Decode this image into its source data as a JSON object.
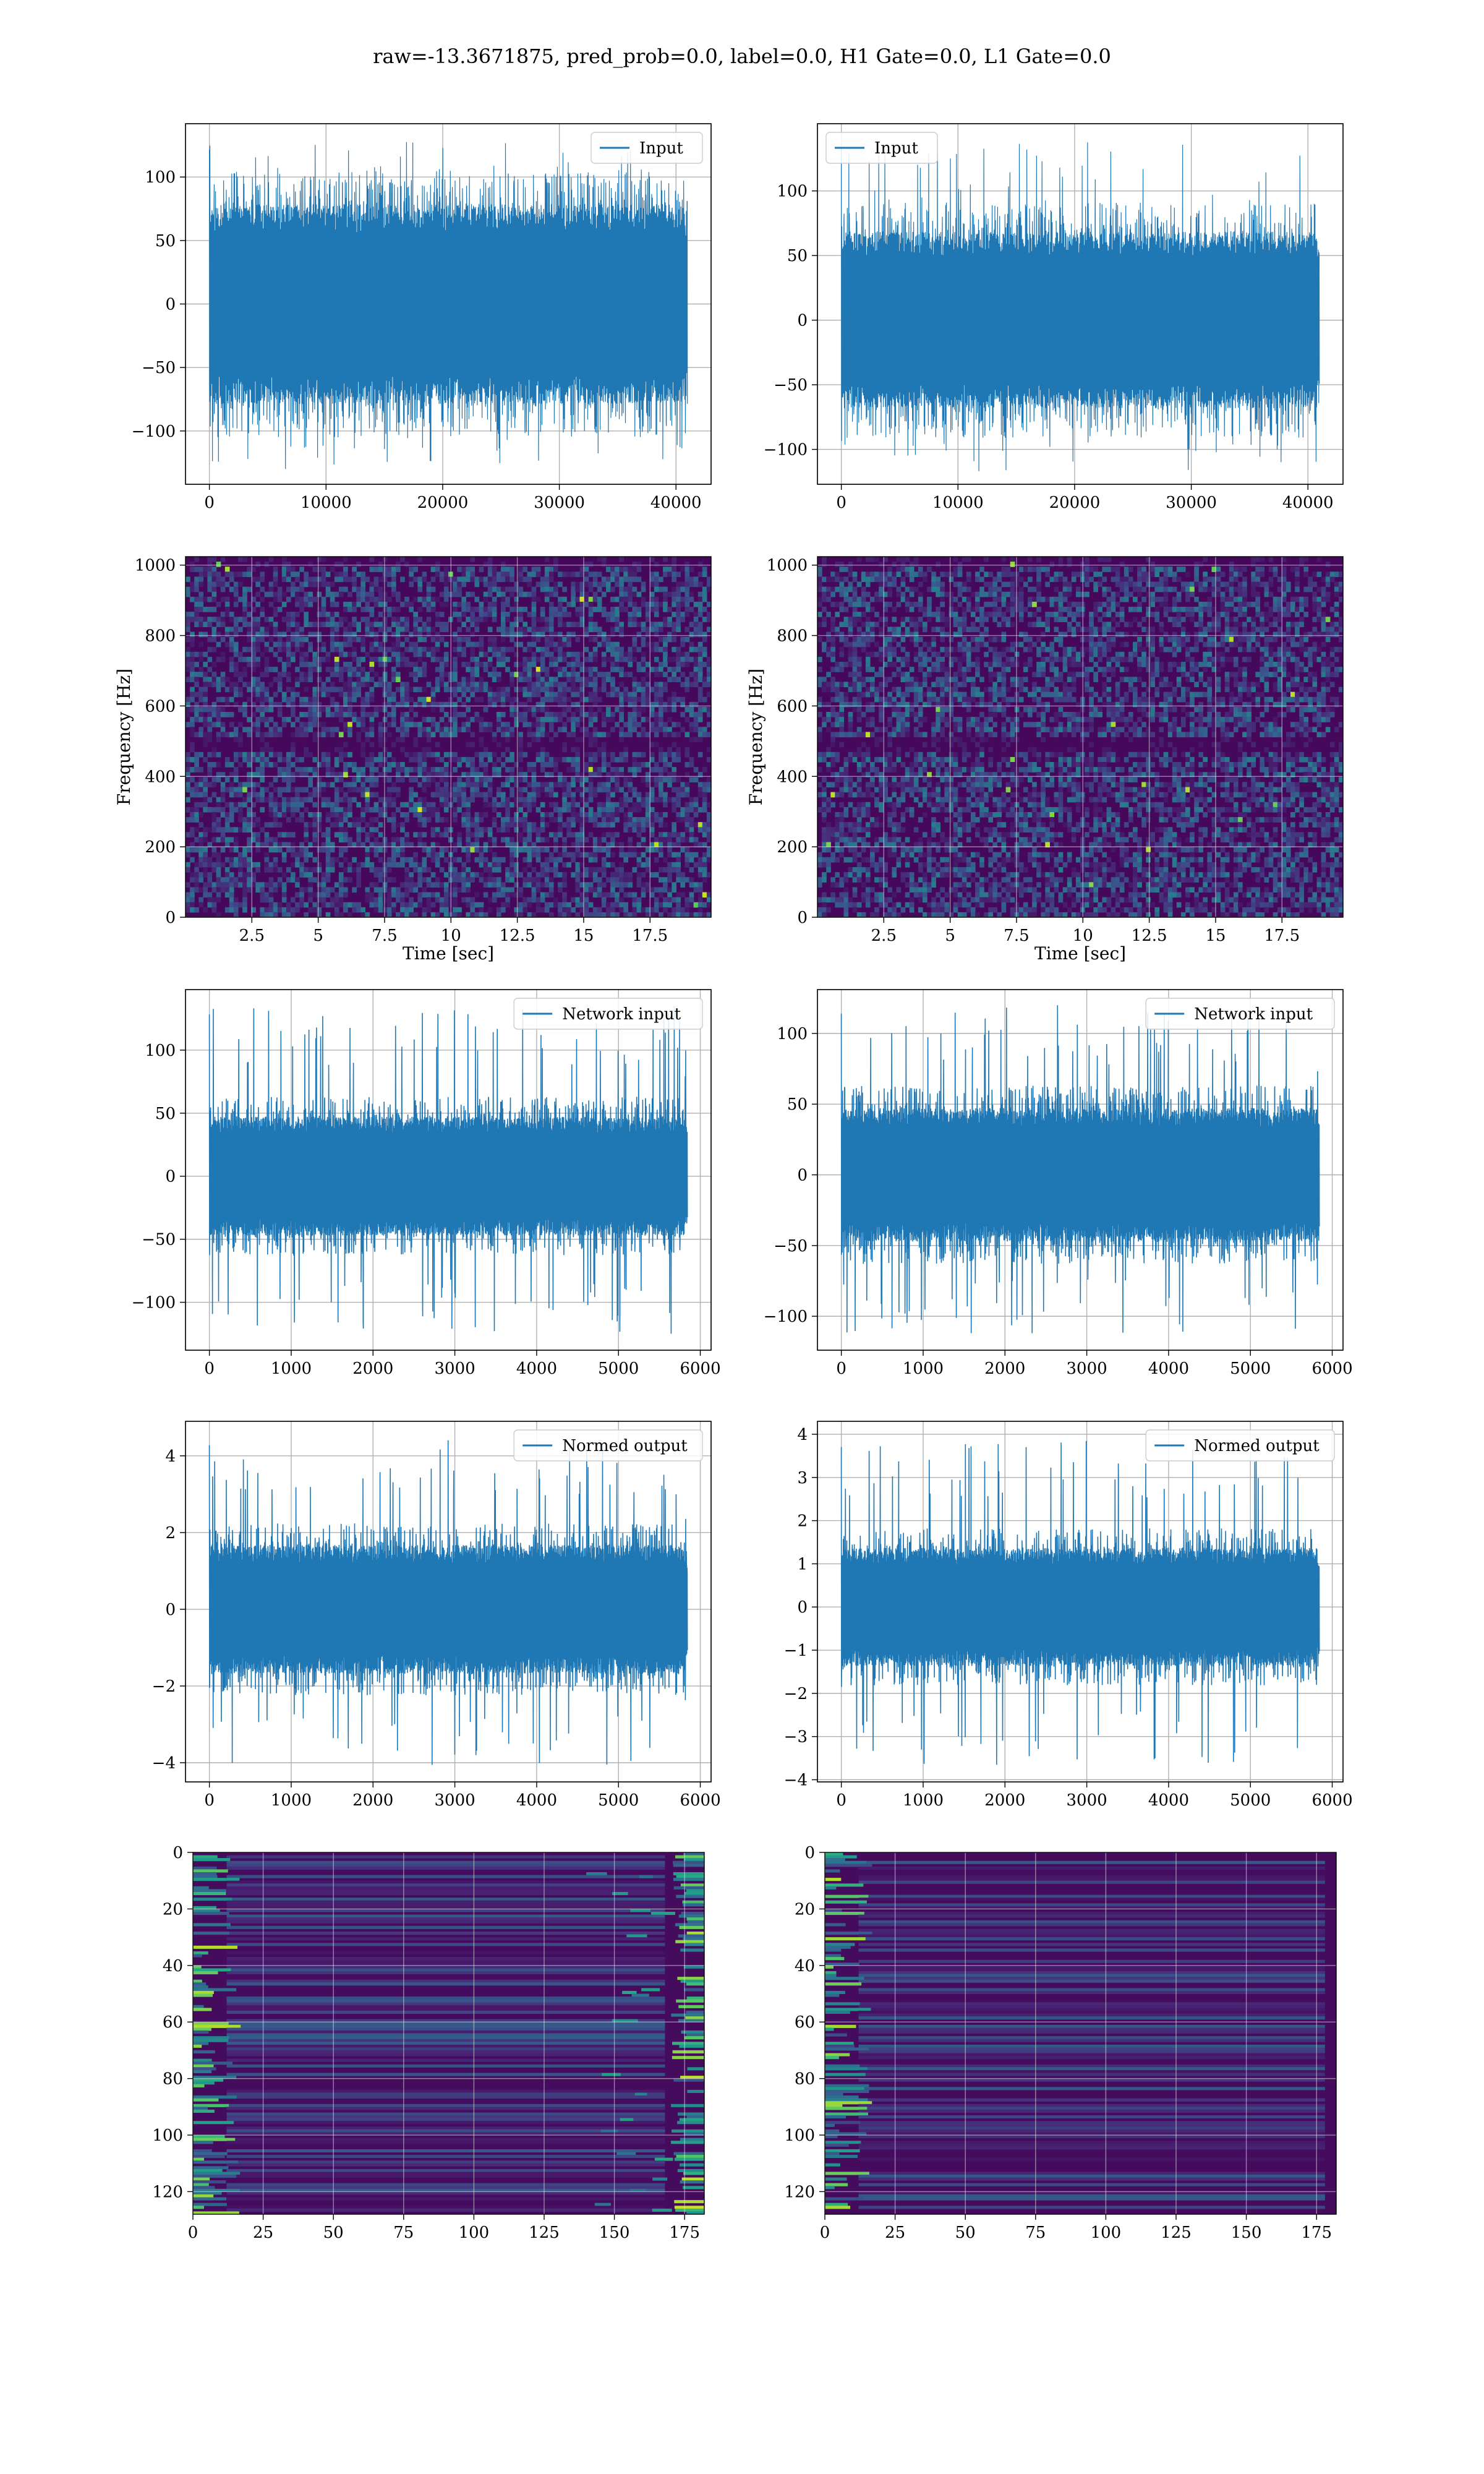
{
  "figure": {
    "title": "raw=-13.3671875, pred_prob=0.0, label=0.0, H1 Gate=0.0, L1 Gate=0.0"
  },
  "chart_data": [
    {
      "id": "h1-input",
      "type": "line",
      "legend": {
        "label": "Input",
        "loc": "upper right"
      },
      "series": [
        {
          "name": "Input",
          "color": "#1f77b4",
          "n_samples": 40960,
          "amplitude_band": [
            -75,
            75
          ],
          "peak_range": [
            -130,
            128
          ]
        }
      ],
      "xlim": [
        -2048,
        43008
      ],
      "ylim": [
        -142,
        142
      ],
      "xticks": [
        0,
        10000,
        20000,
        30000,
        40000
      ],
      "yticks": [
        -100,
        -50,
        0,
        50,
        100
      ],
      "xlabel": "",
      "ylabel": "",
      "grid": true
    },
    {
      "id": "l1-input",
      "type": "line",
      "legend": {
        "label": "Input",
        "loc": "upper left"
      },
      "series": [
        {
          "name": "Input",
          "color": "#1f77b4",
          "n_samples": 40960,
          "amplitude_band": [
            -65,
            65
          ],
          "peak_range": [
            -117,
            140
          ]
        }
      ],
      "xlim": [
        -2048,
        43008
      ],
      "ylim": [
        -127,
        152
      ],
      "xticks": [
        0,
        10000,
        20000,
        30000,
        40000
      ],
      "yticks": [
        -100,
        -50,
        0,
        50,
        100
      ],
      "xlabel": "",
      "ylabel": "",
      "grid": true
    },
    {
      "id": "h1-spectrogram",
      "type": "heatmap",
      "colormap": "viridis",
      "xlim": [
        0,
        19.8
      ],
      "ylim": [
        0,
        1024
      ],
      "xticks": [
        2.5,
        5.0,
        7.5,
        10.0,
        12.5,
        15.0,
        17.5
      ],
      "yticks": [
        0,
        200,
        400,
        600,
        800,
        1000
      ],
      "xlabel": "Time [sec]",
      "ylabel": "Frequency [Hz]",
      "grid": true
    },
    {
      "id": "l1-spectrogram",
      "type": "heatmap",
      "colormap": "viridis",
      "xlim": [
        0,
        19.8
      ],
      "ylim": [
        0,
        1024
      ],
      "xticks": [
        2.5,
        5.0,
        7.5,
        10.0,
        12.5,
        15.0,
        17.5
      ],
      "yticks": [
        0,
        200,
        400,
        600,
        800,
        1000
      ],
      "xlabel": "Time [sec]",
      "ylabel": "Frequency [Hz]",
      "grid": true
    },
    {
      "id": "h1-network-input",
      "type": "line",
      "legend": {
        "label": "Network input",
        "loc": "upper right"
      },
      "series": [
        {
          "name": "Network input",
          "color": "#1f77b4",
          "n_samples": 5840,
          "amplitude_band": [
            -45,
            45
          ],
          "peak_range": [
            -125,
            135
          ]
        }
      ],
      "xlim": [
        -292,
        6132
      ],
      "ylim": [
        -138,
        148
      ],
      "xticks": [
        0,
        1000,
        2000,
        3000,
        4000,
        5000,
        6000
      ],
      "yticks": [
        -100,
        -50,
        0,
        50,
        100
      ],
      "xlabel": "",
      "ylabel": "",
      "grid": true
    },
    {
      "id": "l1-network-input",
      "type": "line",
      "legend": {
        "label": "Network input",
        "loc": "upper right"
      },
      "series": [
        {
          "name": "Network input",
          "color": "#1f77b4",
          "n_samples": 5840,
          "amplitude_band": [
            -45,
            45
          ],
          "peak_range": [
            -113,
            120
          ]
        }
      ],
      "xlim": [
        -292,
        6132
      ],
      "ylim": [
        -124,
        131
      ],
      "xticks": [
        0,
        1000,
        2000,
        3000,
        4000,
        5000,
        6000
      ],
      "yticks": [
        -100,
        -50,
        0,
        50,
        100
      ],
      "xlabel": "",
      "ylabel": "",
      "grid": true
    },
    {
      "id": "h1-normed-output",
      "type": "line",
      "legend": {
        "label": "Normed output",
        "loc": "upper right"
      },
      "series": [
        {
          "name": "Normed output",
          "color": "#1f77b4",
          "n_samples": 5840,
          "amplitude_band": [
            -1.6,
            1.6
          ],
          "peak_range": [
            -4.1,
            4.5
          ]
        }
      ],
      "xlim": [
        -292,
        6132
      ],
      "ylim": [
        -4.5,
        4.9
      ],
      "xticks": [
        0,
        1000,
        2000,
        3000,
        4000,
        5000,
        6000
      ],
      "yticks": [
        -4,
        -2,
        0,
        2,
        4
      ],
      "xlabel": "",
      "ylabel": "",
      "grid": true
    },
    {
      "id": "l1-normed-output",
      "type": "line",
      "legend": {
        "label": "Normed output",
        "loc": "upper right"
      },
      "series": [
        {
          "name": "Normed output",
          "color": "#1f77b4",
          "n_samples": 5840,
          "amplitude_band": [
            -1.3,
            1.3
          ],
          "peak_range": [
            -3.7,
            3.9
          ]
        }
      ],
      "xlim": [
        -292,
        6132
      ],
      "ylim": [
        -4.05,
        4.3
      ],
      "xticks": [
        0,
        1000,
        2000,
        3000,
        4000,
        5000,
        6000
      ],
      "yticks": [
        -4,
        -3,
        -2,
        -1,
        0,
        1,
        2,
        3,
        4
      ],
      "xlabel": "",
      "ylabel": "",
      "grid": true
    },
    {
      "id": "h1-embedding",
      "type": "heatmap",
      "colormap": "viridis",
      "xlim": [
        0,
        182
      ],
      "ylim": [
        128,
        0
      ],
      "xticks": [
        0,
        25,
        50,
        75,
        100,
        125,
        150,
        175
      ],
      "yticks": [
        0,
        20,
        40,
        60,
        80,
        100,
        120
      ],
      "xlabel": "",
      "ylabel": "",
      "grid": true
    },
    {
      "id": "l1-embedding",
      "type": "heatmap",
      "colormap": "viridis",
      "xlim": [
        0,
        182
      ],
      "ylim": [
        128,
        0
      ],
      "xticks": [
        0,
        25,
        50,
        75,
        100,
        125,
        150,
        175
      ],
      "yticks": [
        0,
        20,
        40,
        60,
        80,
        100,
        120
      ],
      "xlabel": "",
      "ylabel": "",
      "grid": true
    }
  ]
}
